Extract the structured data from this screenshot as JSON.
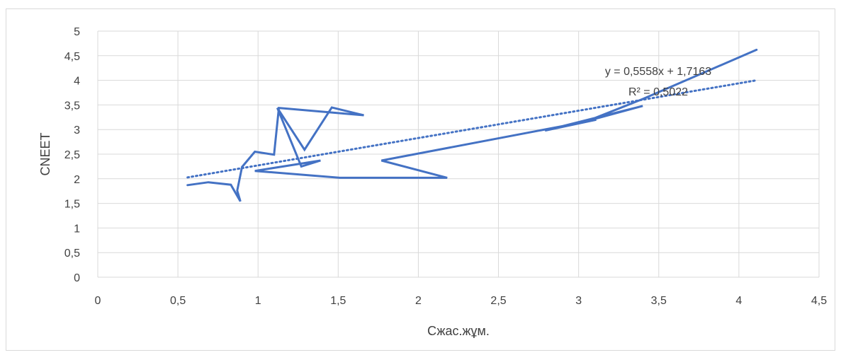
{
  "chart_data": {
    "type": "line",
    "title": "",
    "xlabel": "Сжас.жұм.",
    "ylabel": "CNEET",
    "xlim": [
      0,
      4.5
    ],
    "ylim": [
      0,
      5
    ],
    "xticks": [
      0,
      0.5,
      1,
      1.5,
      2,
      2.5,
      3,
      3.5,
      4,
      4.5
    ],
    "yticks": [
      0,
      0.5,
      1,
      1.5,
      2,
      2.5,
      3,
      3.5,
      4,
      4.5,
      5
    ],
    "xtick_labels": [
      "0",
      "0,5",
      "1",
      "1,5",
      "2",
      "2,5",
      "3",
      "3,5",
      "4",
      "4,5"
    ],
    "ytick_labels": [
      "0",
      "0,5",
      "1",
      "1,5",
      "2",
      "2,5",
      "3",
      "3,5",
      "4",
      "4,5",
      "5"
    ],
    "grid": {
      "vertical": true,
      "horizontal": true
    },
    "colors": {
      "series": "#4472C4",
      "grid": "#d9d9d9",
      "text": "#404040"
    },
    "series": [
      {
        "x": [
          4.11,
          3.4,
          3.06,
          3.4,
          2.79,
          3.11,
          1.77,
          2.18,
          1.51,
          0.98,
          1.39,
          1.27,
          1.12,
          1.29,
          1.46,
          1.66,
          1.13,
          1.1,
          0.98,
          0.9,
          0.87,
          0.89,
          0.83,
          0.69,
          0.56
        ],
        "y": [
          4.62,
          3.62,
          3.18,
          3.48,
          2.98,
          3.2,
          2.37,
          2.02,
          2.02,
          2.16,
          2.37,
          2.25,
          3.44,
          2.59,
          3.45,
          3.29,
          3.44,
          2.49,
          2.55,
          2.24,
          1.76,
          1.54,
          1.88,
          1.93,
          1.87
        ]
      }
    ],
    "trendline": {
      "type": "linear",
      "slope": 0.5558,
      "intercept": 1.7163,
      "x_range": [
        0.56,
        4.11
      ],
      "style": "dotted"
    },
    "annotations": [
      "y = 0,5558x + 1,7163",
      "R² = 0,5022"
    ]
  }
}
